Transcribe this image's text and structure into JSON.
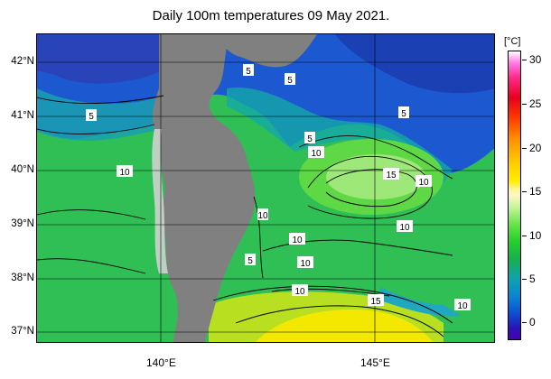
{
  "title": "Daily 100m temperatures 09 May 2021.",
  "lat_labels": [
    "42°N",
    "41°N",
    "40°N",
    "39°N",
    "38°N",
    "37°N"
  ],
  "lon_labels": [
    "140°E",
    "145°E"
  ],
  "colorbar": {
    "unit": "[°C]",
    "ticks": [
      "30",
      "25",
      "20",
      "15",
      "10",
      "5",
      "0"
    ],
    "colors": [
      "#ffffff",
      "#ff7be8",
      "#ff2b8c",
      "#e8001f",
      "#ff8c00",
      "#ffee00",
      "#fdf7c3",
      "#68e54a",
      "#18b04e",
      "#0da3b0",
      "#0b50d0",
      "#4c00b0"
    ]
  },
  "contour_labels": [
    "5",
    "5",
    "5",
    "5",
    "10",
    "10",
    "5",
    "15",
    "10",
    "10",
    "10",
    "10",
    "5",
    "10",
    "10",
    "15",
    "10"
  ],
  "colors": {
    "land": "#808080",
    "ice": "#d0d0d0",
    "cold": "#1848c8",
    "mid": "#30c040",
    "warm": "#f2e800"
  }
}
